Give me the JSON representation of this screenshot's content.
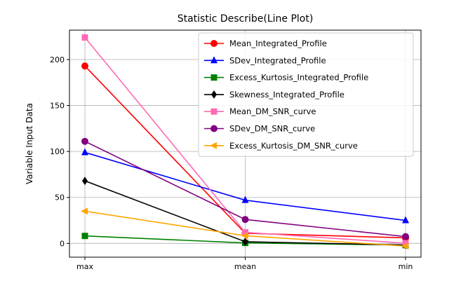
{
  "chart_data": {
    "type": "line",
    "title": "Statistic Describe(Line Plot)",
    "xlabel": "",
    "ylabel": "Variable Input Data",
    "categories": [
      "max",
      "mean",
      "min"
    ],
    "yticks": [
      0,
      50,
      100,
      150,
      200
    ],
    "ylim": [
      -15,
      232
    ],
    "grid": true,
    "legend_position": "top-right",
    "series": [
      {
        "name": "Mean_Integrated_Profile",
        "color": "#ff0000",
        "marker": "circle",
        "values": [
          193,
          11,
          6
        ]
      },
      {
        "name": "SDev_Integrated_Profile",
        "color": "#0000ff",
        "marker": "triangle-up",
        "values": [
          99,
          47,
          25
        ]
      },
      {
        "name": "Excess_Kurtosis_Integrated_Profile",
        "color": "#008000",
        "marker": "square",
        "values": [
          8.1,
          0.5,
          -1.9
        ]
      },
      {
        "name": "Skewness_Integrated_Profile",
        "color": "#000000",
        "marker": "diamond",
        "values": [
          68,
          1.8,
          -1.8
        ]
      },
      {
        "name": "Mean_DM_SNR_curve",
        "color": "#ff69b4",
        "marker": "square",
        "values": [
          224,
          12,
          0.2
        ]
      },
      {
        "name": "SDev_DM_SNR_curve",
        "color": "#800080",
        "marker": "circle",
        "values": [
          111,
          26,
          7.4
        ]
      },
      {
        "name": "Excess_Kurtosis_DM_SNR_curve",
        "color": "#ffa500",
        "marker": "triangle-left",
        "values": [
          35,
          8.3,
          -3
        ]
      }
    ]
  }
}
